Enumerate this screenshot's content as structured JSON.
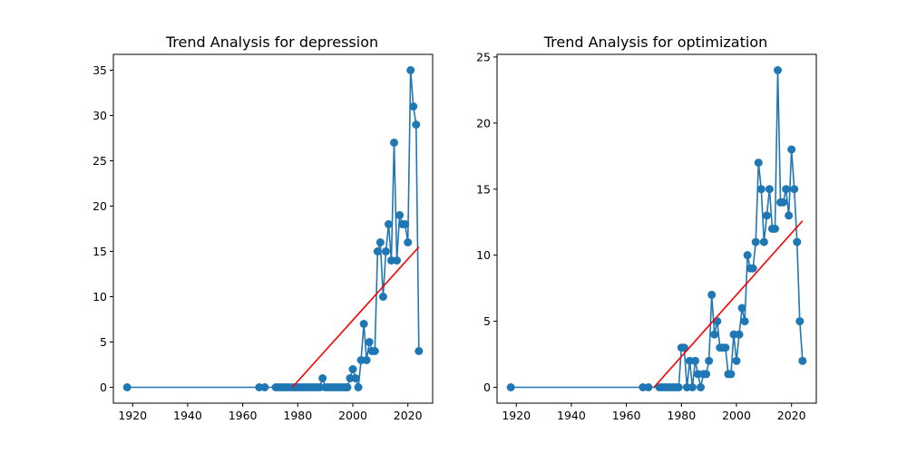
{
  "chart_data": [
    {
      "type": "line",
      "title": "Trend Analysis for depression",
      "xlabel": "",
      "ylabel": "",
      "xlim": [
        1913,
        2029
      ],
      "ylim": [
        -1.75,
        36.75
      ],
      "xticks": [
        1920,
        1940,
        1960,
        1980,
        2000,
        2020
      ],
      "yticks": [
        0,
        5,
        10,
        15,
        20,
        25,
        30,
        35
      ],
      "grid": false,
      "series": [
        {
          "color": "#1f77b4",
          "marker": "circle",
          "points": [
            [
              1918,
              0
            ],
            [
              1966,
              0
            ],
            [
              1968,
              0
            ],
            [
              1972,
              0
            ],
            [
              1973,
              0
            ],
            [
              1974,
              0
            ],
            [
              1975,
              0
            ],
            [
              1976,
              0
            ],
            [
              1977,
              0
            ],
            [
              1978,
              0
            ],
            [
              1979,
              0
            ],
            [
              1980,
              0
            ],
            [
              1981,
              0
            ],
            [
              1982,
              0
            ],
            [
              1983,
              0
            ],
            [
              1984,
              0
            ],
            [
              1985,
              0
            ],
            [
              1986,
              0
            ],
            [
              1987,
              0
            ],
            [
              1988,
              0
            ],
            [
              1989,
              1
            ],
            [
              1990,
              0
            ],
            [
              1991,
              0
            ],
            [
              1992,
              0
            ],
            [
              1993,
              0
            ],
            [
              1994,
              0
            ],
            [
              1995,
              0
            ],
            [
              1996,
              0
            ],
            [
              1997,
              0
            ],
            [
              1998,
              0
            ],
            [
              1999,
              1
            ],
            [
              2000,
              2
            ],
            [
              2001,
              1
            ],
            [
              2002,
              0
            ],
            [
              2003,
              3
            ],
            [
              2004,
              7
            ],
            [
              2005,
              3
            ],
            [
              2006,
              5
            ],
            [
              2007,
              4
            ],
            [
              2008,
              4
            ],
            [
              2009,
              15
            ],
            [
              2010,
              16
            ],
            [
              2011,
              10
            ],
            [
              2012,
              15
            ],
            [
              2013,
              18
            ],
            [
              2014,
              14
            ],
            [
              2015,
              27
            ],
            [
              2016,
              14
            ],
            [
              2017,
              19
            ],
            [
              2018,
              18
            ],
            [
              2019,
              18
            ],
            [
              2020,
              16
            ],
            [
              2021,
              35
            ],
            [
              2022,
              31
            ],
            [
              2023,
              29
            ],
            [
              2024,
              4
            ]
          ]
        }
      ],
      "trendline": {
        "color": "#ff0000",
        "points": [
          [
            1978,
            0
          ],
          [
            2024,
            15.5
          ]
        ]
      }
    },
    {
      "type": "line",
      "title": "Trend Analysis for optimization",
      "xlabel": "",
      "ylabel": "",
      "xlim": [
        1913,
        2029
      ],
      "ylim": [
        -1.2,
        25.2
      ],
      "xticks": [
        1920,
        1940,
        1960,
        1980,
        2000,
        2020
      ],
      "yticks": [
        0,
        5,
        10,
        15,
        20,
        25
      ],
      "grid": false,
      "series": [
        {
          "color": "#1f77b4",
          "marker": "circle",
          "points": [
            [
              1918,
              0
            ],
            [
              1966,
              0
            ],
            [
              1968,
              0
            ],
            [
              1972,
              0
            ],
            [
              1973,
              0
            ],
            [
              1974,
              0
            ],
            [
              1975,
              0
            ],
            [
              1976,
              0
            ],
            [
              1977,
              0
            ],
            [
              1978,
              0
            ],
            [
              1979,
              0
            ],
            [
              1980,
              3
            ],
            [
              1981,
              3
            ],
            [
              1982,
              0
            ],
            [
              1983,
              2
            ],
            [
              1984,
              0
            ],
            [
              1985,
              2
            ],
            [
              1986,
              1
            ],
            [
              1987,
              0
            ],
            [
              1988,
              1
            ],
            [
              1989,
              1
            ],
            [
              1990,
              2
            ],
            [
              1991,
              7
            ],
            [
              1992,
              4
            ],
            [
              1993,
              5
            ],
            [
              1994,
              3
            ],
            [
              1995,
              3
            ],
            [
              1996,
              3
            ],
            [
              1997,
              1
            ],
            [
              1998,
              1
            ],
            [
              1999,
              4
            ],
            [
              2000,
              2
            ],
            [
              2001,
              4
            ],
            [
              2002,
              6
            ],
            [
              2003,
              5
            ],
            [
              2004,
              10
            ],
            [
              2005,
              9
            ],
            [
              2006,
              9
            ],
            [
              2007,
              11
            ],
            [
              2008,
              17
            ],
            [
              2009,
              15
            ],
            [
              2010,
              11
            ],
            [
              2011,
              13
            ],
            [
              2012,
              15
            ],
            [
              2013,
              12
            ],
            [
              2014,
              12
            ],
            [
              2015,
              24
            ],
            [
              2016,
              14
            ],
            [
              2017,
              14
            ],
            [
              2018,
              15
            ],
            [
              2019,
              13
            ],
            [
              2020,
              18
            ],
            [
              2021,
              15
            ],
            [
              2022,
              11
            ],
            [
              2023,
              5
            ],
            [
              2024,
              2
            ]
          ]
        }
      ],
      "trendline": {
        "color": "#ff0000",
        "points": [
          [
            1970,
            0
          ],
          [
            2024,
            12.6
          ]
        ]
      }
    }
  ]
}
